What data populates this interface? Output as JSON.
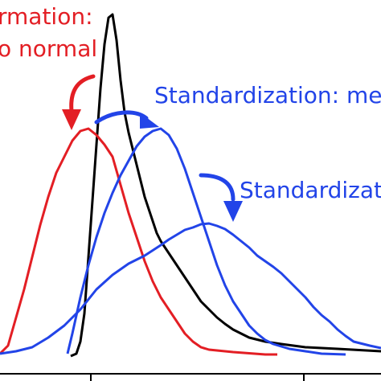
{
  "chart_data": {
    "type": "line",
    "title": "",
    "xlabel": "",
    "ylabel": "",
    "grid": false,
    "colors": {
      "red": "#e31e24",
      "black": "#000000",
      "blue": "#2244e8"
    },
    "annotations": [
      {
        "id": "a1",
        "text": "rmation:",
        "color": "#e31e24"
      },
      {
        "id": "a2",
        "text": "o normal",
        "color": "#e31e24"
      },
      {
        "id": "a3",
        "text": "Standardization: mea",
        "color": "#2244e8"
      },
      {
        "id": "a4",
        "text": "Standardizat",
        "color": "#2244e8"
      }
    ],
    "series": [
      {
        "color": "#000000",
        "points": [
          [
            88,
            443
          ],
          [
            95,
            440
          ],
          [
            100,
            425
          ],
          [
            105,
            390
          ],
          [
            110,
            320
          ],
          [
            115,
            250
          ],
          [
            120,
            180
          ],
          [
            125,
            110
          ],
          [
            130,
            55
          ],
          [
            135,
            22
          ],
          [
            140,
            18
          ],
          [
            145,
            50
          ],
          [
            150,
            100
          ],
          [
            155,
            140
          ],
          [
            160,
            165
          ],
          [
            165,
            185
          ],
          [
            170,
            205
          ],
          [
            175,
            225
          ],
          [
            180,
            245
          ],
          [
            185,
            260
          ],
          [
            190,
            275
          ],
          [
            195,
            290
          ],
          [
            200,
            300
          ],
          [
            210,
            315
          ],
          [
            220,
            330
          ],
          [
            230,
            345
          ],
          [
            240,
            360
          ],
          [
            250,
            375
          ],
          [
            260,
            385
          ],
          [
            270,
            395
          ],
          [
            280,
            403
          ],
          [
            290,
            410
          ],
          [
            300,
            415
          ],
          [
            310,
            420
          ],
          [
            330,
            425
          ],
          [
            350,
            428
          ],
          [
            380,
            432
          ],
          [
            420,
            434
          ],
          [
            474,
            437
          ]
        ]
      },
      {
        "color": "#e31e24",
        "points": [
          [
            0,
            440
          ],
          [
            10,
            430
          ],
          [
            20,
            395
          ],
          [
            30,
            360
          ],
          [
            40,
            320
          ],
          [
            50,
            280
          ],
          [
            60,
            245
          ],
          [
            70,
            215
          ],
          [
            80,
            195
          ],
          [
            90,
            175
          ],
          [
            100,
            163
          ],
          [
            110,
            160
          ],
          [
            120,
            168
          ],
          [
            130,
            180
          ],
          [
            140,
            195
          ],
          [
            150,
            230
          ],
          [
            160,
            265
          ],
          [
            170,
            295
          ],
          [
            180,
            325
          ],
          [
            190,
            350
          ],
          [
            200,
            370
          ],
          [
            210,
            385
          ],
          [
            220,
            400
          ],
          [
            230,
            415
          ],
          [
            240,
            425
          ],
          [
            250,
            432
          ],
          [
            260,
            435
          ],
          [
            290,
            438
          ],
          [
            330,
            441
          ],
          [
            345,
            441
          ]
        ]
      },
      {
        "color": "#2244e8",
        "points": [
          [
            84,
            440
          ],
          [
            90,
            415
          ],
          [
            100,
            370
          ],
          [
            110,
            330
          ],
          [
            120,
            295
          ],
          [
            130,
            265
          ],
          [
            140,
            240
          ],
          [
            150,
            218
          ],
          [
            160,
            200
          ],
          [
            170,
            182
          ],
          [
            180,
            170
          ],
          [
            190,
            163
          ],
          [
            200,
            160
          ],
          [
            210,
            168
          ],
          [
            220,
            185
          ],
          [
            230,
            210
          ],
          [
            240,
            240
          ],
          [
            250,
            270
          ],
          [
            260,
            300
          ],
          [
            270,
            330
          ],
          [
            280,
            355
          ],
          [
            290,
            375
          ],
          [
            300,
            390
          ],
          [
            310,
            405
          ],
          [
            320,
            415
          ],
          [
            330,
            423
          ],
          [
            340,
            428
          ],
          [
            360,
            434
          ],
          [
            380,
            437
          ],
          [
            400,
            440
          ],
          [
            430,
            441
          ]
        ]
      },
      {
        "color": "#2244e8",
        "points": [
          [
            0,
            440
          ],
          [
            20,
            437
          ],
          [
            40,
            432
          ],
          [
            60,
            420
          ],
          [
            80,
            405
          ],
          [
            100,
            385
          ],
          [
            120,
            360
          ],
          [
            140,
            342
          ],
          [
            160,
            328
          ],
          [
            180,
            318
          ],
          [
            200,
            305
          ],
          [
            210,
            298
          ],
          [
            220,
            292
          ],
          [
            230,
            286
          ],
          [
            240,
            283
          ],
          [
            250,
            279
          ],
          [
            260,
            278
          ],
          [
            270,
            281
          ],
          [
            280,
            285
          ],
          [
            290,
            292
          ],
          [
            300,
            300
          ],
          [
            310,
            308
          ],
          [
            320,
            318
          ],
          [
            330,
            325
          ],
          [
            340,
            332
          ],
          [
            350,
            340
          ],
          [
            360,
            350
          ],
          [
            370,
            360
          ],
          [
            380,
            370
          ],
          [
            390,
            382
          ],
          [
            400,
            392
          ],
          [
            410,
            400
          ],
          [
            420,
            410
          ],
          [
            430,
            418
          ],
          [
            440,
            425
          ],
          [
            460,
            430
          ],
          [
            474,
            433
          ]
        ]
      }
    ]
  }
}
